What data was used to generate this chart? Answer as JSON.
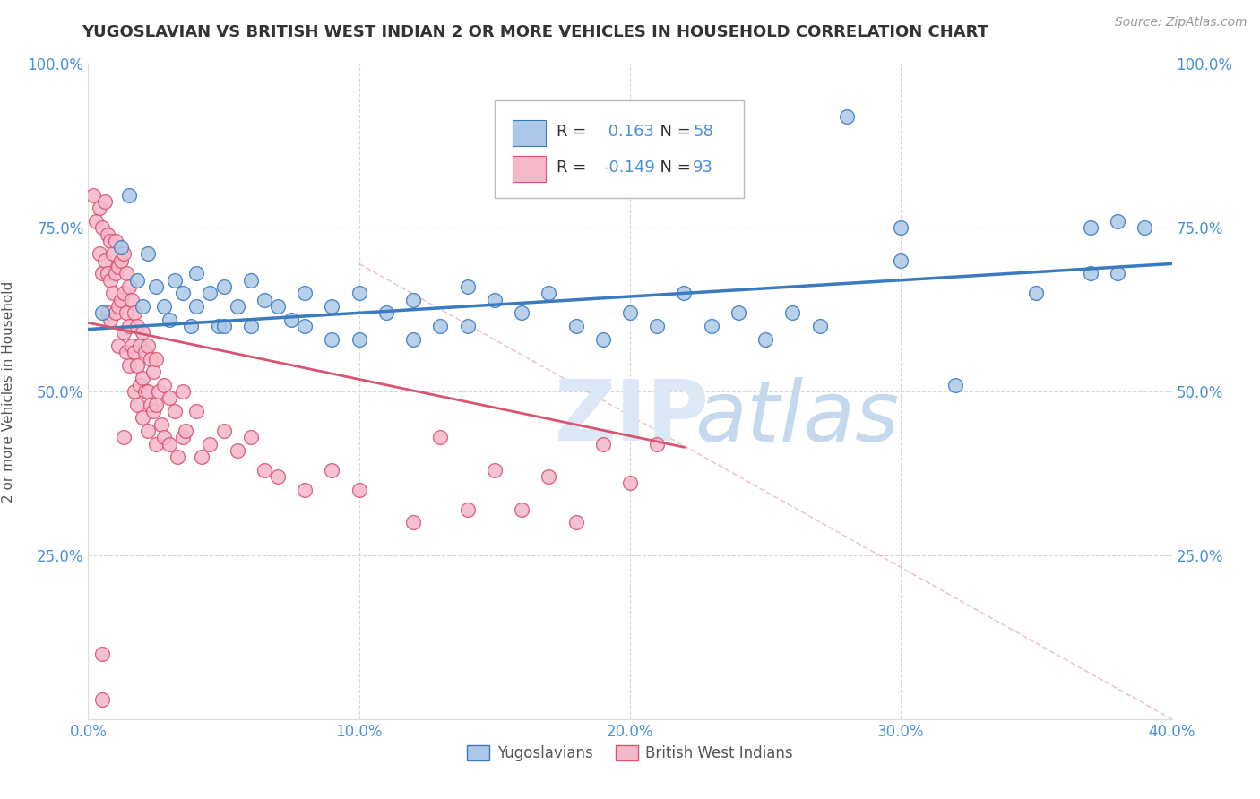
{
  "title": "YUGOSLAVIAN VS BRITISH WEST INDIAN 2 OR MORE VEHICLES IN HOUSEHOLD CORRELATION CHART",
  "source": "Source: ZipAtlas.com",
  "xlabel_blue": "Yugoslavians",
  "xlabel_pink": "British West Indians",
  "ylabel": "2 or more Vehicles in Household",
  "xlim": [
    0.0,
    0.4
  ],
  "ylim": [
    0.0,
    1.0
  ],
  "xticks": [
    0.0,
    0.1,
    0.2,
    0.3,
    0.4
  ],
  "xticklabels": [
    "0.0%",
    "10.0%",
    "20.0%",
    "30.0%",
    "40.0%"
  ],
  "yticks": [
    0.0,
    0.25,
    0.5,
    0.75,
    1.0
  ],
  "yticklabels": [
    "",
    "25.0%",
    "50.0%",
    "75.0%",
    "100.0%"
  ],
  "R_blue": 0.163,
  "N_blue": 58,
  "R_pink": -0.149,
  "N_pink": 93,
  "blue_color": "#adc8e8",
  "pink_color": "#f5b8cb",
  "blue_line_color": "#3a7abf",
  "pink_line_color": "#d9546e",
  "blue_trend_x": [
    0.0,
    0.4
  ],
  "blue_trend_y": [
    0.595,
    0.695
  ],
  "pink_trend_x": [
    0.0,
    0.22
  ],
  "pink_trend_y": [
    0.605,
    0.415
  ],
  "dash_line_x": [
    0.1,
    0.4
  ],
  "dash_line_y": [
    0.695,
    0.0
  ],
  "blue_scatter": [
    [
      0.005,
      0.62
    ],
    [
      0.012,
      0.72
    ],
    [
      0.015,
      0.8
    ],
    [
      0.018,
      0.67
    ],
    [
      0.02,
      0.63
    ],
    [
      0.022,
      0.71
    ],
    [
      0.025,
      0.66
    ],
    [
      0.028,
      0.63
    ],
    [
      0.03,
      0.61
    ],
    [
      0.032,
      0.67
    ],
    [
      0.035,
      0.65
    ],
    [
      0.038,
      0.6
    ],
    [
      0.04,
      0.68
    ],
    [
      0.04,
      0.63
    ],
    [
      0.045,
      0.65
    ],
    [
      0.048,
      0.6
    ],
    [
      0.05,
      0.66
    ],
    [
      0.05,
      0.6
    ],
    [
      0.055,
      0.63
    ],
    [
      0.06,
      0.67
    ],
    [
      0.06,
      0.6
    ],
    [
      0.065,
      0.64
    ],
    [
      0.07,
      0.63
    ],
    [
      0.075,
      0.61
    ],
    [
      0.08,
      0.65
    ],
    [
      0.08,
      0.6
    ],
    [
      0.09,
      0.63
    ],
    [
      0.09,
      0.58
    ],
    [
      0.1,
      0.65
    ],
    [
      0.1,
      0.58
    ],
    [
      0.11,
      0.62
    ],
    [
      0.12,
      0.64
    ],
    [
      0.12,
      0.58
    ],
    [
      0.13,
      0.6
    ],
    [
      0.14,
      0.66
    ],
    [
      0.14,
      0.6
    ],
    [
      0.15,
      0.64
    ],
    [
      0.16,
      0.62
    ],
    [
      0.17,
      0.65
    ],
    [
      0.18,
      0.6
    ],
    [
      0.19,
      0.58
    ],
    [
      0.2,
      0.62
    ],
    [
      0.21,
      0.6
    ],
    [
      0.22,
      0.65
    ],
    [
      0.23,
      0.6
    ],
    [
      0.24,
      0.62
    ],
    [
      0.25,
      0.58
    ],
    [
      0.26,
      0.62
    ],
    [
      0.27,
      0.6
    ],
    [
      0.28,
      0.92
    ],
    [
      0.3,
      0.75
    ],
    [
      0.3,
      0.7
    ],
    [
      0.32,
      0.51
    ],
    [
      0.35,
      0.65
    ],
    [
      0.37,
      0.68
    ],
    [
      0.37,
      0.75
    ],
    [
      0.38,
      0.76
    ],
    [
      0.38,
      0.68
    ],
    [
      0.39,
      0.75
    ]
  ],
  "pink_scatter": [
    [
      0.002,
      0.8
    ],
    [
      0.003,
      0.76
    ],
    [
      0.004,
      0.78
    ],
    [
      0.004,
      0.71
    ],
    [
      0.005,
      0.75
    ],
    [
      0.005,
      0.68
    ],
    [
      0.006,
      0.79
    ],
    [
      0.006,
      0.7
    ],
    [
      0.007,
      0.74
    ],
    [
      0.007,
      0.68
    ],
    [
      0.007,
      0.62
    ],
    [
      0.008,
      0.73
    ],
    [
      0.008,
      0.67
    ],
    [
      0.008,
      0.61
    ],
    [
      0.009,
      0.71
    ],
    [
      0.009,
      0.65
    ],
    [
      0.01,
      0.73
    ],
    [
      0.01,
      0.68
    ],
    [
      0.01,
      0.62
    ],
    [
      0.011,
      0.69
    ],
    [
      0.011,
      0.63
    ],
    [
      0.011,
      0.57
    ],
    [
      0.012,
      0.7
    ],
    [
      0.012,
      0.64
    ],
    [
      0.013,
      0.71
    ],
    [
      0.013,
      0.65
    ],
    [
      0.013,
      0.59
    ],
    [
      0.014,
      0.68
    ],
    [
      0.014,
      0.62
    ],
    [
      0.014,
      0.56
    ],
    [
      0.015,
      0.66
    ],
    [
      0.015,
      0.6
    ],
    [
      0.015,
      0.54
    ],
    [
      0.016,
      0.64
    ],
    [
      0.016,
      0.57
    ],
    [
      0.017,
      0.62
    ],
    [
      0.017,
      0.56
    ],
    [
      0.017,
      0.5
    ],
    [
      0.018,
      0.6
    ],
    [
      0.018,
      0.54
    ],
    [
      0.018,
      0.48
    ],
    [
      0.019,
      0.57
    ],
    [
      0.019,
      0.51
    ],
    [
      0.02,
      0.59
    ],
    [
      0.02,
      0.52
    ],
    [
      0.02,
      0.46
    ],
    [
      0.021,
      0.56
    ],
    [
      0.021,
      0.5
    ],
    [
      0.022,
      0.57
    ],
    [
      0.022,
      0.5
    ],
    [
      0.022,
      0.44
    ],
    [
      0.023,
      0.55
    ],
    [
      0.023,
      0.48
    ],
    [
      0.024,
      0.53
    ],
    [
      0.024,
      0.47
    ],
    [
      0.025,
      0.55
    ],
    [
      0.025,
      0.48
    ],
    [
      0.025,
      0.42
    ],
    [
      0.026,
      0.5
    ],
    [
      0.027,
      0.45
    ],
    [
      0.028,
      0.51
    ],
    [
      0.028,
      0.43
    ],
    [
      0.03,
      0.49
    ],
    [
      0.03,
      0.42
    ],
    [
      0.032,
      0.47
    ],
    [
      0.033,
      0.4
    ],
    [
      0.035,
      0.5
    ],
    [
      0.035,
      0.43
    ],
    [
      0.036,
      0.44
    ],
    [
      0.04,
      0.47
    ],
    [
      0.042,
      0.4
    ],
    [
      0.045,
      0.42
    ],
    [
      0.05,
      0.44
    ],
    [
      0.055,
      0.41
    ],
    [
      0.06,
      0.43
    ],
    [
      0.065,
      0.38
    ],
    [
      0.07,
      0.37
    ],
    [
      0.08,
      0.35
    ],
    [
      0.09,
      0.38
    ],
    [
      0.1,
      0.35
    ],
    [
      0.12,
      0.3
    ],
    [
      0.13,
      0.43
    ],
    [
      0.14,
      0.32
    ],
    [
      0.15,
      0.38
    ],
    [
      0.16,
      0.32
    ],
    [
      0.17,
      0.37
    ],
    [
      0.18,
      0.3
    ],
    [
      0.19,
      0.42
    ],
    [
      0.2,
      0.36
    ],
    [
      0.21,
      0.42
    ],
    [
      0.005,
      0.1
    ],
    [
      0.005,
      0.03
    ],
    [
      0.013,
      0.43
    ]
  ],
  "watermark_zip": "ZIP",
  "watermark_atlas": "atlas",
  "background_color": "#ffffff",
  "grid_color": "#cccccc"
}
